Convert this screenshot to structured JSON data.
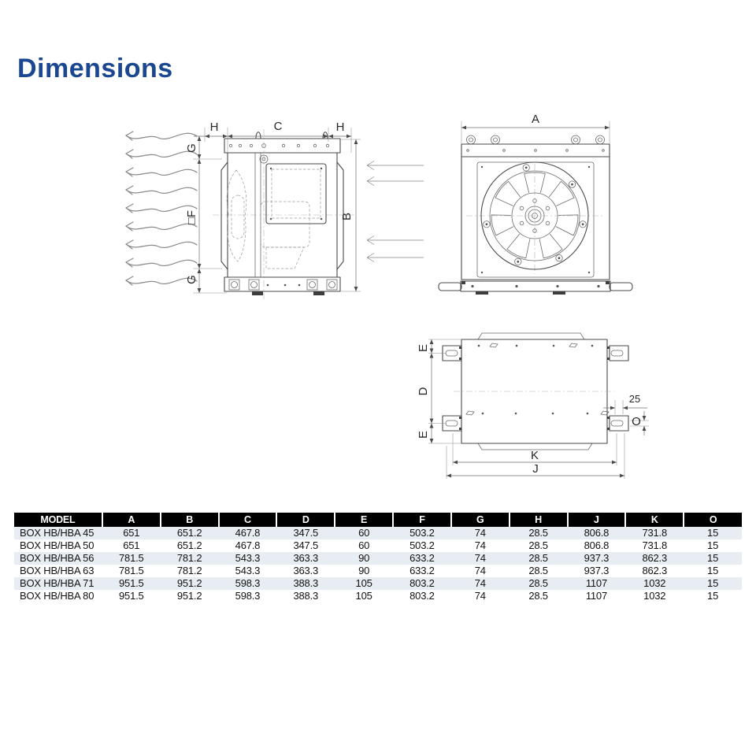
{
  "title": "Dimensions",
  "colors": {
    "title": "#1a478f",
    "table_header_bg": "#000000",
    "table_header_text": "#ffffff",
    "table_row_alt": "#e8edf4"
  },
  "diagrams": {
    "side_view": {
      "dim_top_left": "H",
      "dim_top_center": "C",
      "dim_top_right": "H",
      "dim_left_top": "G",
      "dim_left_center": "□F",
      "dim_left_bottom": "G",
      "dim_right": "B"
    },
    "front_view": {
      "dim_width": "A"
    },
    "plan_view": {
      "dim_left_top": "E",
      "dim_left_center": "D",
      "dim_left_bottom": "E",
      "dim_offset": "25",
      "dim_hole": "O",
      "dim_inner_span": "K",
      "dim_outer_span": "J"
    }
  },
  "table": {
    "columns": [
      "MODEL",
      "A",
      "B",
      "C",
      "D",
      "E",
      "F",
      "G",
      "H",
      "J",
      "K",
      "O"
    ],
    "rows": [
      [
        "BOX HB/HBA 45",
        "651",
        "651.2",
        "467.8",
        "347.5",
        "60",
        "503.2",
        "74",
        "28.5",
        "806.8",
        "731.8",
        "15"
      ],
      [
        "BOX HB/HBA 50",
        "651",
        "651.2",
        "467.8",
        "347.5",
        "60",
        "503.2",
        "74",
        "28.5",
        "806.8",
        "731.8",
        "15"
      ],
      [
        "BOX HB/HBA 56",
        "781.5",
        "781.2",
        "543.3",
        "363.3",
        "90",
        "633.2",
        "74",
        "28.5",
        "937.3",
        "862.3",
        "15"
      ],
      [
        "BOX HB/HBA 63",
        "781.5",
        "781.2",
        "543.3",
        "363.3",
        "90",
        "633.2",
        "74",
        "28.5",
        "937.3",
        "862.3",
        "15"
      ],
      [
        "BOX HB/HBA 71",
        "951.5",
        "951.2",
        "598.3",
        "388.3",
        "105",
        "803.2",
        "74",
        "28.5",
        "1107",
        "1032",
        "15"
      ],
      [
        "BOX HB/HBA 80",
        "951.5",
        "951.2",
        "598.3",
        "388.3",
        "105",
        "803.2",
        "74",
        "28.5",
        "1107",
        "1032",
        "15"
      ]
    ]
  }
}
